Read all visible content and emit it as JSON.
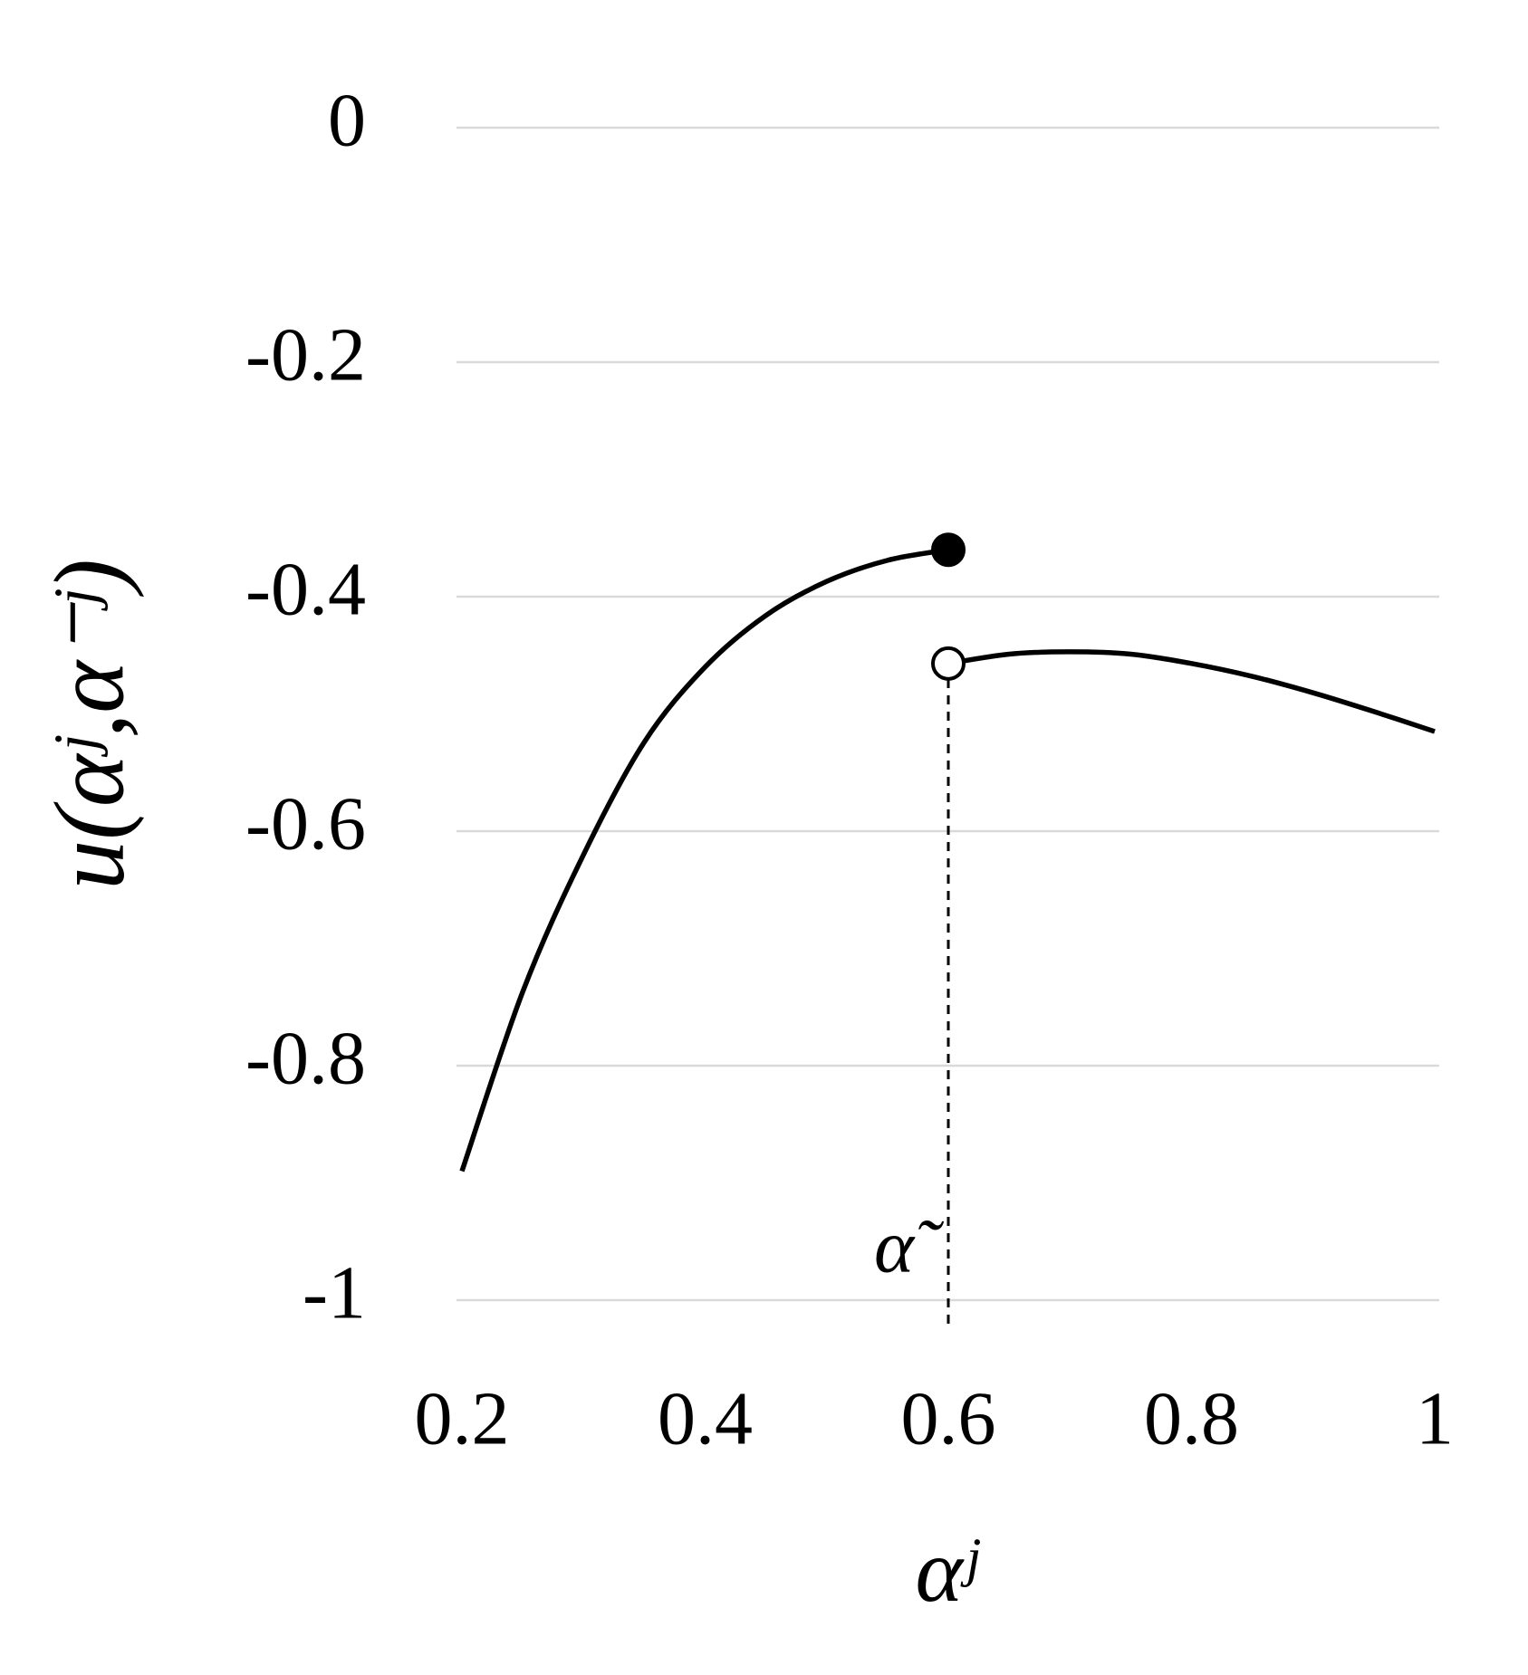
{
  "chart_data": {
    "type": "line",
    "ylabel": "u(αʲ,α⁻ʲ)",
    "xlabel": "αʲ",
    "series": [
      {
        "color": "#000000",
        "end_marker": "filled",
        "x": [
          0.2,
          0.25,
          0.3,
          0.35,
          0.4,
          0.45,
          0.5,
          0.55,
          0.6
        ],
        "values": [
          -0.89,
          -0.737,
          -0.62,
          -0.524,
          -0.46,
          -0.416,
          -0.387,
          -0.369,
          -0.36
        ]
      },
      {
        "color": "#000000",
        "start_marker": "open",
        "x": [
          0.6,
          0.65,
          0.7,
          0.75,
          0.8,
          0.85,
          0.9,
          0.95,
          1
        ],
        "values": [
          -0.457,
          -0.449,
          -0.447,
          -0.449,
          -0.457,
          -0.468,
          -0.482,
          -0.498,
          -0.515
        ]
      }
    ],
    "annotation": {
      "text": "α̃",
      "x": 0.6
    },
    "xlim": [
      0.2,
      1
    ],
    "xticks": [
      0.2,
      0.4,
      0.6,
      0.8,
      1
    ],
    "ylim": [
      -1,
      0
    ],
    "yticks": [
      0,
      -0.2,
      -0.4,
      -0.6,
      -0.8,
      -1
    ],
    "grid": true,
    "grid_color": "#d9d9d9"
  }
}
